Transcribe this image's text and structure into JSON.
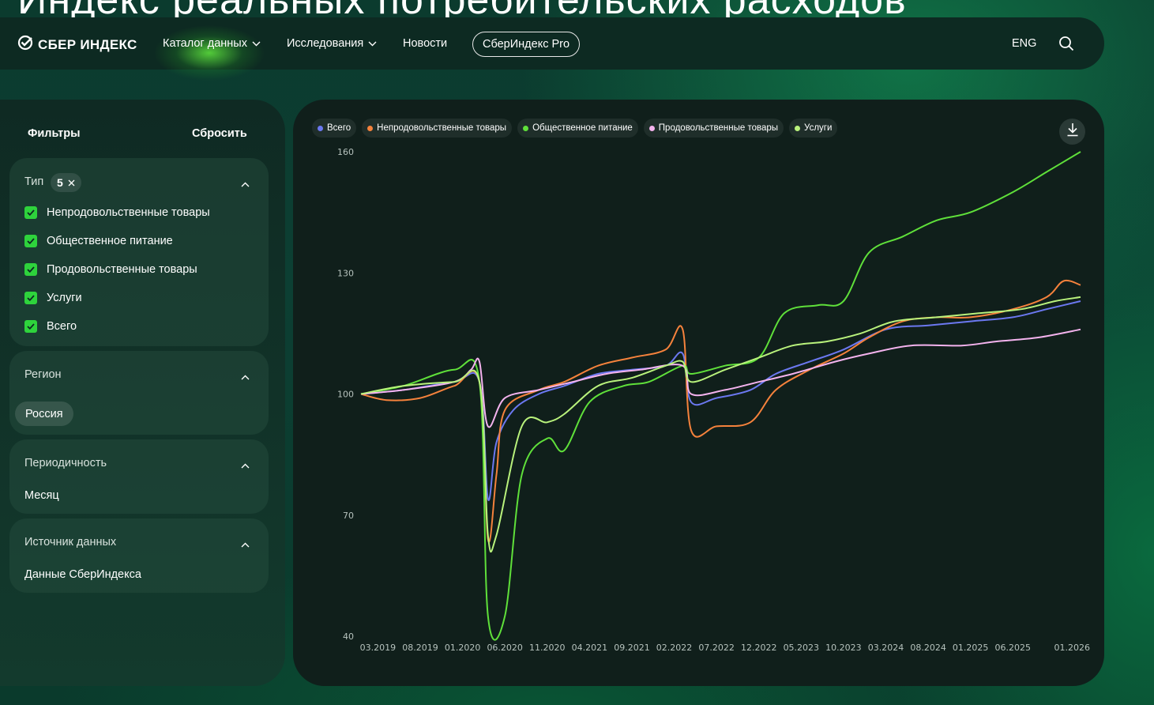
{
  "page": {
    "heading": "Индекс реальных потребительских расходов"
  },
  "header": {
    "logo_text": "СБЕР ИНДЕКС",
    "nav": {
      "catalog": "Каталог данных",
      "research": "Исследования",
      "news": "Новости",
      "pro": "СберИндекс Pro"
    },
    "lang": "ENG",
    "icons": [
      "sber-logo-icon",
      "chevron-down-icon",
      "search-icon"
    ]
  },
  "filters": {
    "title": "Фильтры",
    "reset": "Сбросить",
    "type": {
      "title": "Тип",
      "count": "5",
      "options": [
        {
          "label": "Непродовольственные товары",
          "checked": true
        },
        {
          "label": "Общественное питание",
          "checked": true
        },
        {
          "label": "Продовольственные товары",
          "checked": true
        },
        {
          "label": "Услуги",
          "checked": true
        },
        {
          "label": "Всего",
          "checked": true
        }
      ]
    },
    "region": {
      "title": "Регион",
      "value": "Россия"
    },
    "period": {
      "title": "Периодичность",
      "value": "Месяц"
    },
    "source": {
      "title": "Источник данных",
      "value": "Данные СберИндекса"
    }
  },
  "colors": {
    "total": "#6b78f0",
    "nonfood": "#f5823c",
    "catering": "#5fe03a",
    "food": "#f4b3ee",
    "services": "#b9f27c",
    "accent_check": "#2ed33c"
  },
  "chart_data": {
    "type": "line",
    "ylim": [
      40,
      160
    ],
    "yticks": [
      40,
      70,
      100,
      130,
      160
    ],
    "xlim": [
      "2019-01",
      "2026-02"
    ],
    "xticks": [
      "03.2019",
      "08.2019",
      "01.2020",
      "06.2020",
      "11.2020",
      "04.2021",
      "09.2021",
      "02.2022",
      "07.2022",
      "12.2022",
      "05.2023",
      "10.2023",
      "03.2024",
      "08.2024",
      "01.2025",
      "06.2025",
      "01.2026"
    ],
    "legend": "top-left",
    "grid": false,
    "series": [
      {
        "name": "Всего",
        "color": "#6b78f0",
        "points": [
          [
            "2019-01",
            100
          ],
          [
            "2019-06",
            101
          ],
          [
            "2019-12",
            103
          ],
          [
            "2020-03",
            103
          ],
          [
            "2020-04",
            74
          ],
          [
            "2020-05",
            88
          ],
          [
            "2020-07",
            96
          ],
          [
            "2020-10",
            100
          ],
          [
            "2021-01",
            102
          ],
          [
            "2021-05",
            105
          ],
          [
            "2021-09",
            106
          ],
          [
            "2022-01",
            107
          ],
          [
            "2022-03",
            110
          ],
          [
            "2022-04",
            98
          ],
          [
            "2022-07",
            99
          ],
          [
            "2022-11",
            101
          ],
          [
            "2023-02",
            105
          ],
          [
            "2023-06",
            108
          ],
          [
            "2023-10",
            111
          ],
          [
            "2024-03",
            116
          ],
          [
            "2024-08",
            117
          ],
          [
            "2025-01",
            118
          ],
          [
            "2025-06",
            119
          ],
          [
            "2025-10",
            121
          ],
          [
            "2026-02",
            123
          ]
        ]
      },
      {
        "name": "Непродовольственные товары",
        "color": "#f5823c",
        "points": [
          [
            "2019-01",
            100
          ],
          [
            "2019-04",
            98.5
          ],
          [
            "2019-08",
            99
          ],
          [
            "2019-12",
            102
          ],
          [
            "2020-03",
            103
          ],
          [
            "2020-04",
            64
          ],
          [
            "2020-05",
            80
          ],
          [
            "2020-06",
            96
          ],
          [
            "2020-10",
            101
          ],
          [
            "2021-01",
            103
          ],
          [
            "2021-05",
            107
          ],
          [
            "2021-09",
            109
          ],
          [
            "2022-01",
            111
          ],
          [
            "2022-03",
            116
          ],
          [
            "2022-04",
            91
          ],
          [
            "2022-07",
            92
          ],
          [
            "2022-11",
            93
          ],
          [
            "2023-02",
            101
          ],
          [
            "2023-06",
            106
          ],
          [
            "2023-10",
            110
          ],
          [
            "2024-01",
            114
          ],
          [
            "2024-05",
            118
          ],
          [
            "2024-09",
            119
          ],
          [
            "2025-01",
            119
          ],
          [
            "2025-06",
            121
          ],
          [
            "2025-10",
            124
          ],
          [
            "2025-12",
            128
          ],
          [
            "2026-02",
            127
          ]
        ]
      },
      {
        "name": "Общественное питание",
        "color": "#5fe03a",
        "points": [
          [
            "2019-01",
            100
          ],
          [
            "2019-06",
            102
          ],
          [
            "2019-12",
            106
          ],
          [
            "2020-03",
            103
          ],
          [
            "2020-04",
            45
          ],
          [
            "2020-06",
            45
          ],
          [
            "2020-08",
            80
          ],
          [
            "2020-11",
            89
          ],
          [
            "2021-01",
            86
          ],
          [
            "2021-04",
            98
          ],
          [
            "2021-08",
            102
          ],
          [
            "2021-11",
            103
          ],
          [
            "2022-03",
            107
          ],
          [
            "2022-04",
            105
          ],
          [
            "2022-08",
            107
          ],
          [
            "2022-12",
            109
          ],
          [
            "2023-03",
            120
          ],
          [
            "2023-07",
            122
          ],
          [
            "2023-10",
            123
          ],
          [
            "2024-01",
            135
          ],
          [
            "2024-05",
            139
          ],
          [
            "2024-09",
            143
          ],
          [
            "2025-01",
            145
          ],
          [
            "2025-06",
            150
          ],
          [
            "2025-10",
            155
          ],
          [
            "2026-02",
            160
          ]
        ]
      },
      {
        "name": "Продовольственные товары",
        "color": "#f4b3ee",
        "points": [
          [
            "2019-01",
            100
          ],
          [
            "2019-06",
            101
          ],
          [
            "2019-12",
            103
          ],
          [
            "2020-02",
            106
          ],
          [
            "2020-03",
            108
          ],
          [
            "2020-04",
            92
          ],
          [
            "2020-06",
            99
          ],
          [
            "2020-10",
            101
          ],
          [
            "2021-02",
            103
          ],
          [
            "2021-06",
            105
          ],
          [
            "2021-10",
            106
          ],
          [
            "2022-03",
            107
          ],
          [
            "2022-04",
            100
          ],
          [
            "2022-08",
            101
          ],
          [
            "2022-12",
            103
          ],
          [
            "2023-04",
            105
          ],
          [
            "2023-09",
            108
          ],
          [
            "2024-01",
            110
          ],
          [
            "2024-06",
            112
          ],
          [
            "2024-12",
            112
          ],
          [
            "2025-04",
            113
          ],
          [
            "2025-09",
            114
          ],
          [
            "2026-02",
            116
          ]
        ]
      },
      {
        "name": "Услуги",
        "color": "#b9f27c",
        "points": [
          [
            "2019-01",
            100
          ],
          [
            "2019-06",
            102
          ],
          [
            "2019-12",
            103
          ],
          [
            "2020-03",
            103
          ],
          [
            "2020-04",
            65
          ],
          [
            "2020-05",
            65
          ],
          [
            "2020-08",
            92
          ],
          [
            "2020-11",
            93
          ],
          [
            "2021-01",
            95
          ],
          [
            "2021-05",
            102
          ],
          [
            "2021-09",
            104
          ],
          [
            "2022-01",
            107
          ],
          [
            "2022-03",
            108
          ],
          [
            "2022-04",
            103
          ],
          [
            "2022-08",
            106
          ],
          [
            "2022-12",
            109
          ],
          [
            "2023-04",
            112
          ],
          [
            "2023-08",
            113
          ],
          [
            "2023-12",
            115
          ],
          [
            "2024-04",
            118
          ],
          [
            "2024-09",
            119
          ],
          [
            "2025-02",
            120
          ],
          [
            "2025-07",
            121
          ],
          [
            "2025-11",
            123
          ],
          [
            "2026-02",
            124
          ]
        ]
      }
    ]
  }
}
